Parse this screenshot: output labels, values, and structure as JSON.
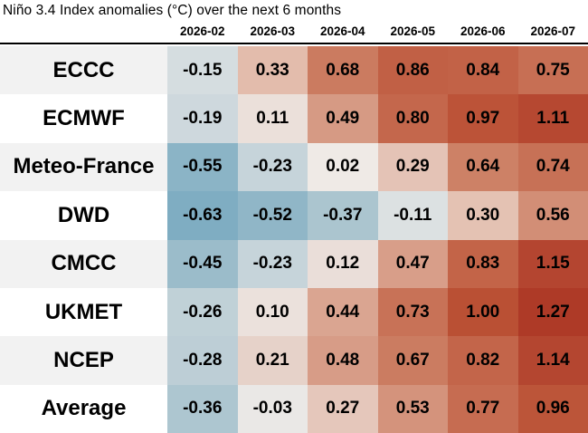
{
  "title": "Niño 3.4 Index anomalies (°C) over the next 6 months",
  "chart_data": {
    "type": "heatmap",
    "title": "Niño 3.4 Index anomalies (°C) over the next 6 months",
    "unit": "°C",
    "value_decimals": 2,
    "columns": [
      "2026-02",
      "2026-03",
      "2026-04",
      "2026-05",
      "2026-06",
      "2026-07"
    ],
    "rows": [
      {
        "label": "ECCC",
        "values": [
          -0.15,
          0.33,
          0.68,
          0.86,
          0.84,
          0.75
        ]
      },
      {
        "label": "ECMWF",
        "values": [
          -0.19,
          0.11,
          0.49,
          0.8,
          0.97,
          1.11
        ]
      },
      {
        "label": "Meteo-France",
        "values": [
          -0.55,
          -0.23,
          0.02,
          0.29,
          0.64,
          0.74
        ]
      },
      {
        "label": "DWD",
        "values": [
          -0.63,
          -0.52,
          -0.37,
          -0.11,
          0.3,
          0.56
        ]
      },
      {
        "label": "CMCC",
        "values": [
          -0.45,
          -0.23,
          0.12,
          0.47,
          0.83,
          1.15
        ]
      },
      {
        "label": "UKMET",
        "values": [
          -0.26,
          0.1,
          0.44,
          0.73,
          1.0,
          1.27
        ]
      },
      {
        "label": "NCEP",
        "values": [
          -0.28,
          0.21,
          0.48,
          0.67,
          0.82,
          1.14
        ]
      },
      {
        "label": "Average",
        "values": [
          -0.36,
          -0.03,
          0.27,
          0.53,
          0.77,
          0.96
        ]
      }
    ],
    "colormap": {
      "description": "diverging blue-white-red, linear interpolation between stops",
      "stops": [
        [
          -0.63,
          "#7fadc2"
        ],
        [
          -0.45,
          "#9bbcca"
        ],
        [
          -0.3,
          "#b9ccd4"
        ],
        [
          -0.15,
          "#d5dde0"
        ],
        [
          -0.05,
          "#e6e6e4"
        ],
        [
          0.0,
          "#f0ece8"
        ],
        [
          0.1,
          "#ebe1dc"
        ],
        [
          0.21,
          "#e6d2c9"
        ],
        [
          0.33,
          "#e3bcac"
        ],
        [
          0.49,
          "#d69a84"
        ],
        [
          0.64,
          "#cd8166"
        ],
        [
          0.8,
          "#c4674c"
        ],
        [
          1.0,
          "#ba5034"
        ],
        [
          1.15,
          "#b44530"
        ],
        [
          1.27,
          "#ae3a27"
        ]
      ]
    },
    "layout": {
      "row_label_bg_odd": "#f2f2f2",
      "row_label_bg_even": "#ffffff",
      "divider_color": "#000000",
      "text_color": "#000000"
    }
  }
}
